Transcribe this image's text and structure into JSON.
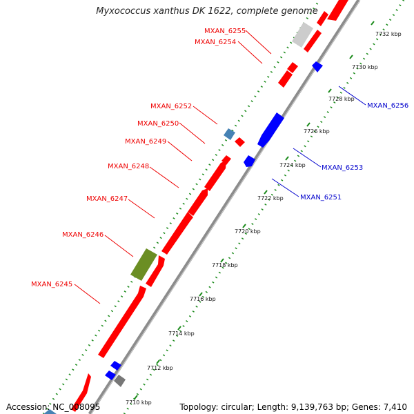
{
  "title": "Myxococcus xanthus DK 1622, complete genome",
  "footer": {
    "accession": "Accession: NC_008095",
    "topology": "Topology: circular; Length: 9,139,763 bp; Genes: 7,410"
  },
  "colors": {
    "forward_gene": "#ff0000",
    "reverse_gene": "#0000ff",
    "forward_label": "#ee0000",
    "reverse_label": "#0000cc",
    "backbone": "#8c8c8c",
    "tick_dots": "#1a8a1a",
    "highlight_gene": "#6b8e23",
    "other_gene": "#777777",
    "steelblue_gene": "#4682b4"
  },
  "scale_ticks": [
    "7710 kbp",
    "7712 kbp",
    "7714 kbp",
    "7716 kbp",
    "7718 kbp",
    "7720 kbp",
    "7722 kbp",
    "7724 kbp",
    "7726 kbp",
    "7728 kbp",
    "7730 kbp",
    "7732 kbp"
  ],
  "forward_labels": [
    "MXAN_6255",
    "MXAN_6254",
    "MXAN_6252",
    "MXAN_6250",
    "MXAN_6249",
    "MXAN_6248",
    "MXAN_6247",
    "MXAN_6246",
    "MXAN_6245"
  ],
  "reverse_labels": [
    "MXAN_6256",
    "MXAN_6253",
    "MXAN_6251"
  ]
}
